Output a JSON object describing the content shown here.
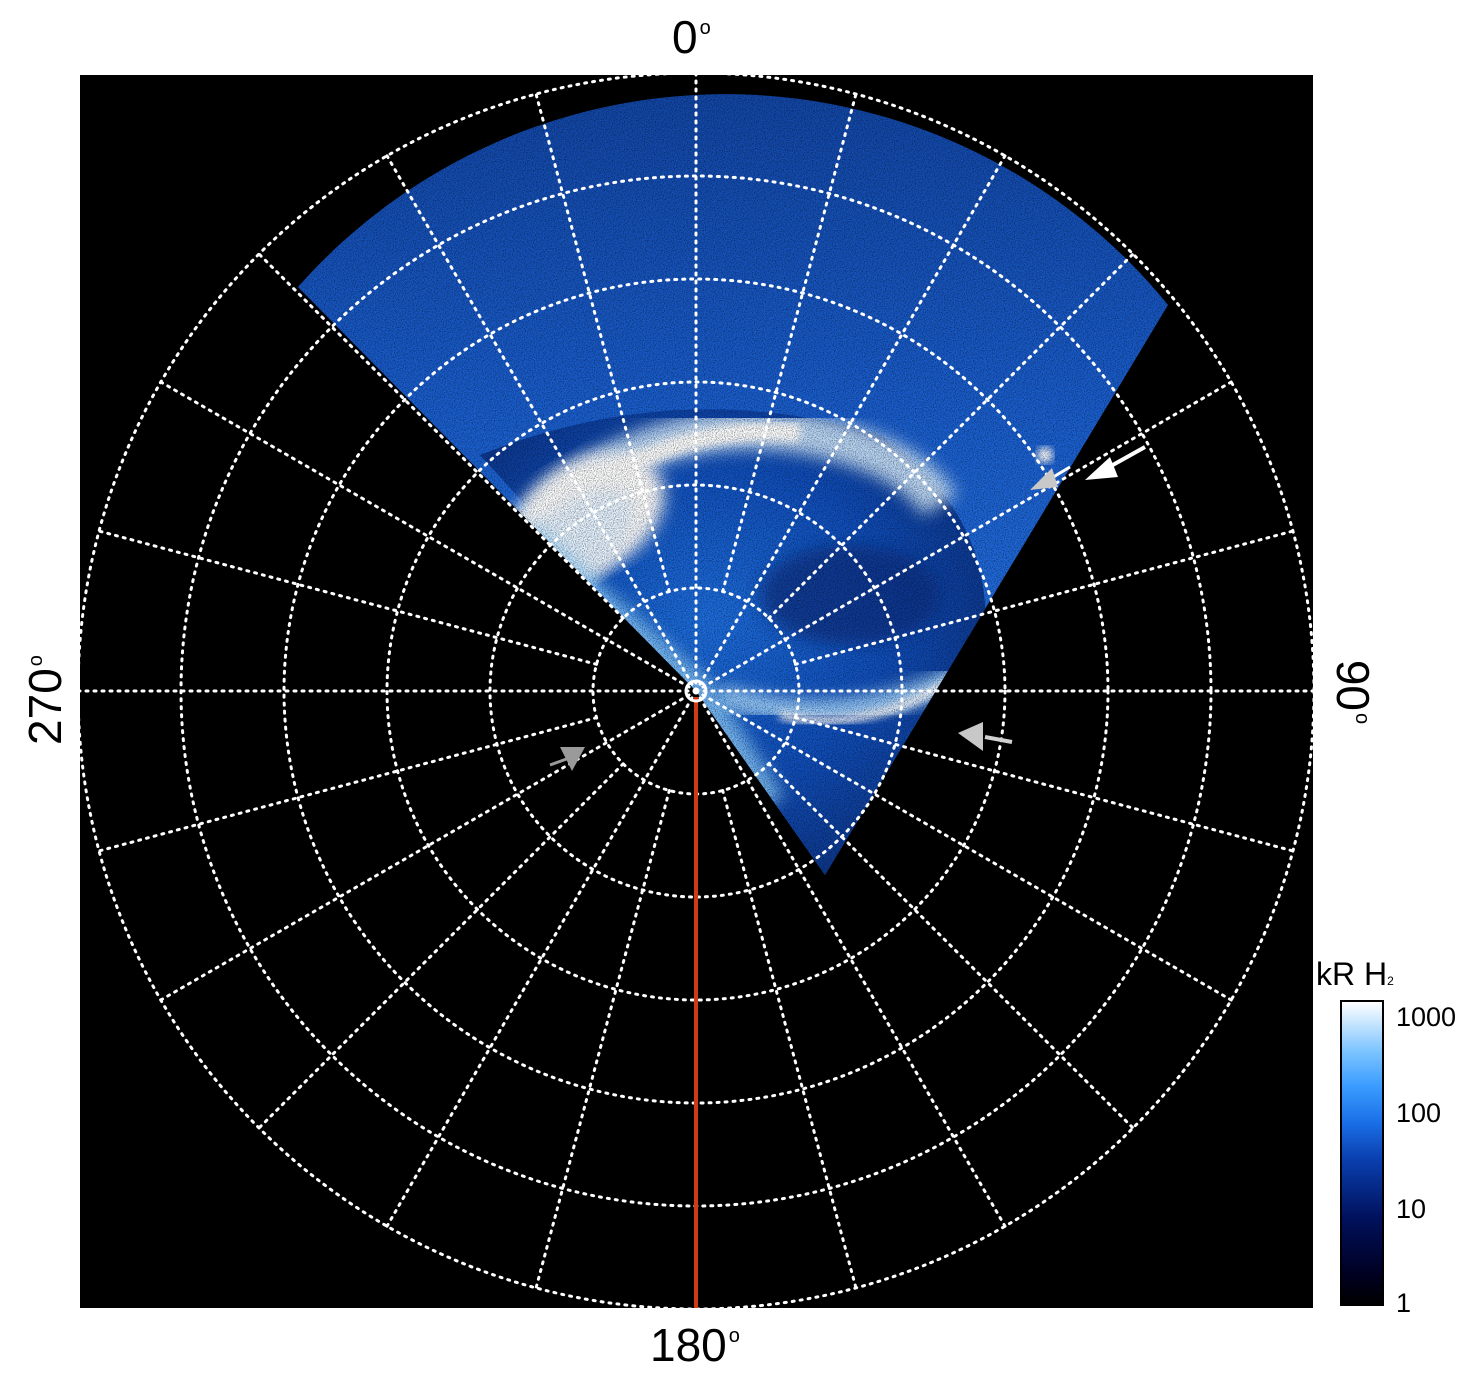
{
  "labels": {
    "top": "0",
    "bottom": "180",
    "left": "270",
    "right": "90",
    "degree_symbol": "o"
  },
  "colorbar": {
    "title_main": "kR H",
    "title_sub": "2",
    "ticks": [
      "1000",
      "100",
      "10",
      "1"
    ],
    "scale": "log"
  },
  "colors": {
    "background": "#000000",
    "grid": "#ffffff",
    "meridian_line": "#d23a12",
    "aurora_bright": "#ffffff",
    "aurora_mid": "#2f8cff",
    "aurora_dark": "#0b3a9a"
  },
  "grid": {
    "rings": 6,
    "meridians": 24
  },
  "arrows": [
    {
      "name": "white-arrow",
      "color": "#ffffff"
    },
    {
      "name": "gray-arrow-upper",
      "color": "#c8c8c8"
    },
    {
      "name": "gray-arrow-right",
      "color": "#c8c8c8"
    },
    {
      "name": "gray-arrow-left",
      "color": "#9a9a9a"
    }
  ]
}
